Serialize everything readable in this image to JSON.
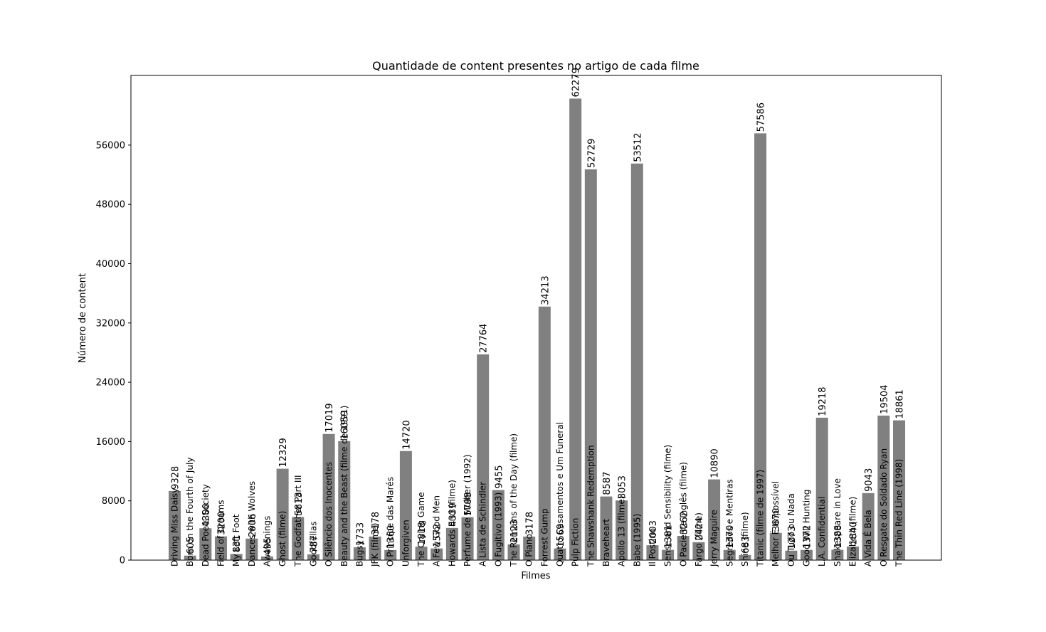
{
  "chart_data": {
    "type": "bar",
    "title": "Quantidade de content presentes no artigo de cada filme",
    "xlabel": "Filmes",
    "ylabel": "Número de content",
    "ylim": [
      0,
      65400
    ],
    "yticks": [
      0,
      8000,
      16000,
      24000,
      32000,
      40000,
      48000,
      56000
    ],
    "grid": false,
    "bar_color": "#808080",
    "categories": [
      "Driving Miss Daisy",
      "Born on the Fourth of July",
      "Dead Poets Society",
      "Field of Dreams",
      "My Left Foot",
      "Dances with Wolves",
      "Awakenings",
      "Ghost (filme)",
      "The Godfather Part III",
      "Goodfellas",
      "O Silêncio dos Inocentes",
      "Beauty and the Beast (filme de 1991)",
      "Bugsy",
      "JFK (filme)",
      "O Príncipe das Marés",
      "Unforgiven",
      "The Crying Game",
      "A Few Good Men",
      "Howards End (filme)",
      "Perfume de Mulher (1992)",
      "A Lista de Schindler",
      "O Fugitivo (1993)",
      "The Remains of the Day (filme)",
      "O Piano",
      "Forrest Gump",
      "Quatro Casamentos e Um Funeral",
      "Pulp Fiction",
      "The Shawshank Redemption",
      "Braveheart",
      "Apollo 13 (filme)",
      "Babe (1995)",
      "Il Postino",
      "Sense and Sensibility (filme)",
      "O Paciente Inglês (filme)",
      "Fargo (filme)",
      "Jerry Maguire",
      "Segredos e Mentiras",
      "Shine (filme)",
      "Titanic (filme de 1997)",
      "Melhor É Impossível",
      "Ou Tudo ou Nada",
      "Good Will Hunting",
      "L.A. Confidential",
      "Shakespeare in Love",
      "Elizabeth (filme)",
      "A Vida É Bela",
      "O Resgate do Soldado Ryan",
      "The Thin Red Line (1998)"
    ],
    "values": [
      9328,
      605,
      4300,
      3200,
      831,
      2906,
      495,
      12329,
      5813,
      787,
      17019,
      16059,
      1733,
      3178,
      1360,
      14720,
      1818,
      1572,
      4339,
      5798,
      27764,
      9455,
      2123,
      3178,
      34213,
      1569,
      62279,
      52729,
      8587,
      8053,
      53512,
      2003,
      1381,
      3262,
      2424,
      10890,
      1370,
      683,
      57586,
      3670,
      1273,
      1372,
      19218,
      1388,
      1840,
      9043,
      19504,
      18861
    ]
  }
}
